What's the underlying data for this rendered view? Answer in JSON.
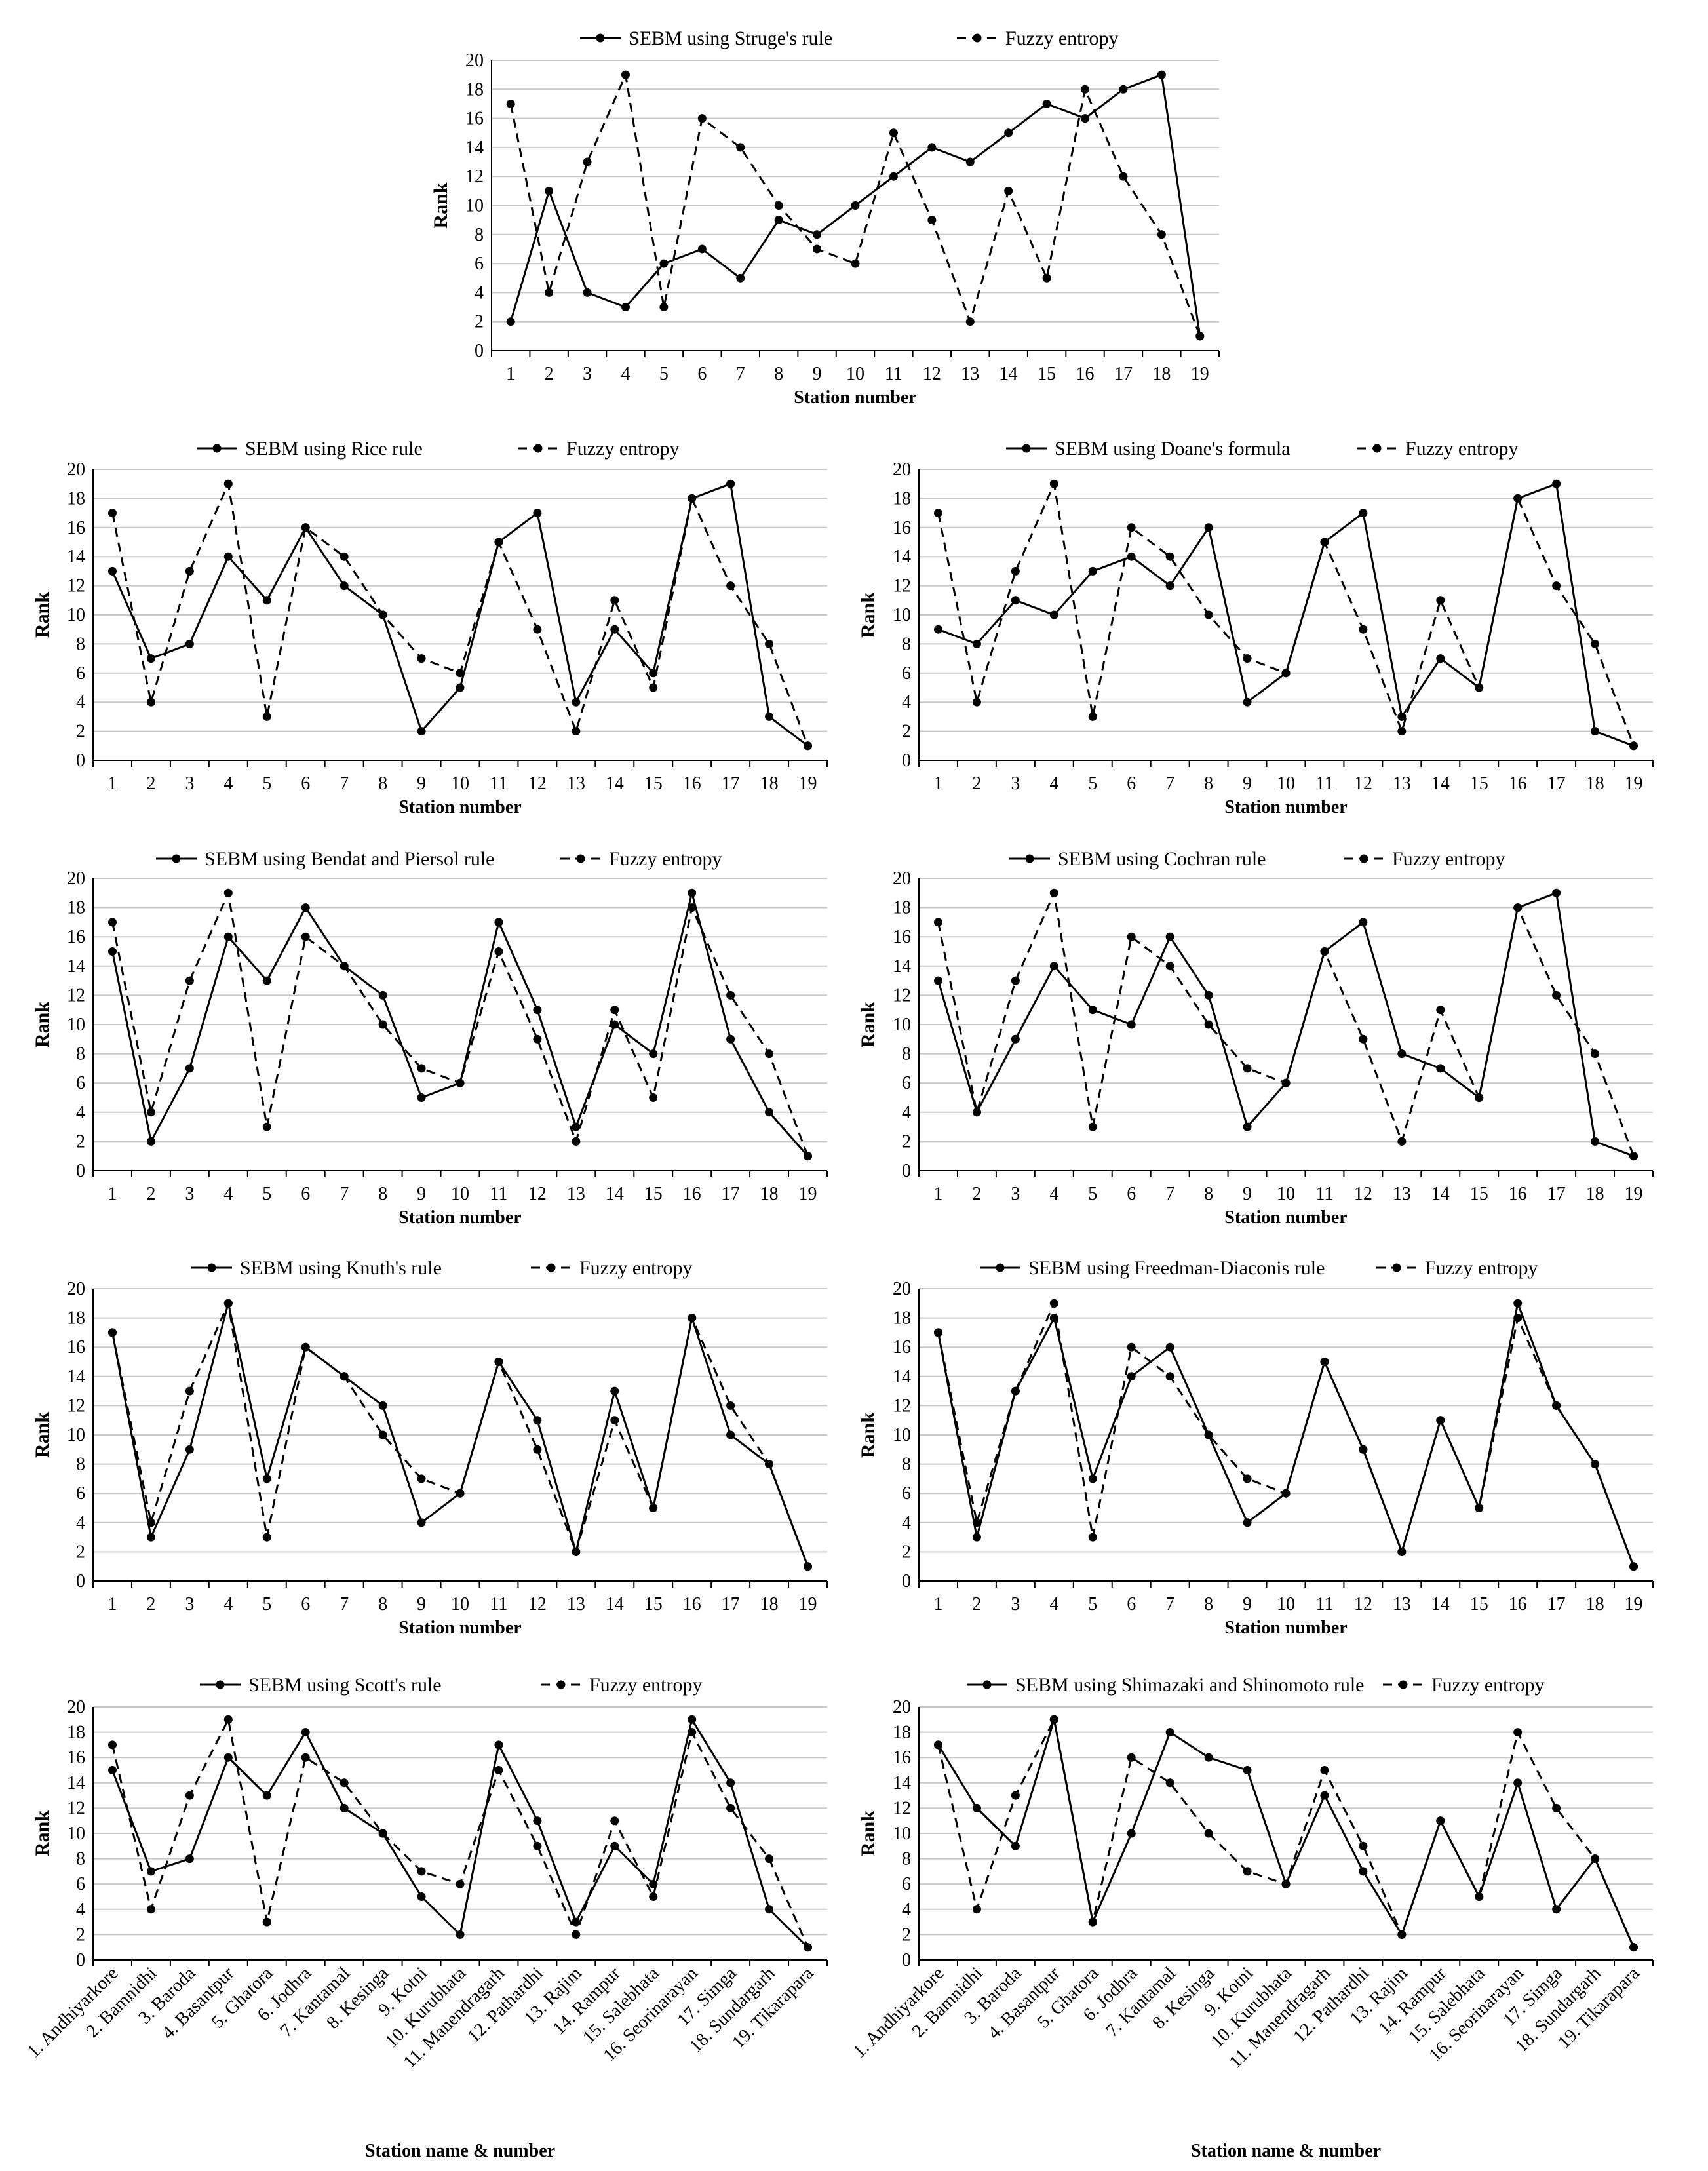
{
  "chart_data": [
    {
      "type": "line",
      "xlabel": "Station number",
      "ylabel": "Rank",
      "ylim": [
        0,
        20
      ],
      "yticks": [
        "0",
        "2",
        "4",
        "6",
        "8",
        "10",
        "12",
        "14",
        "16",
        "18",
        "20"
      ],
      "x": [
        "1",
        "2",
        "3",
        "4",
        "5",
        "6",
        "7",
        "8",
        "9",
        "10",
        "11",
        "12",
        "13",
        "14",
        "15",
        "16",
        "17",
        "18",
        "19"
      ],
      "grid": "horizontal",
      "legend": "top",
      "series": [
        {
          "name": "SEBM using Struge's rule",
          "style": "solid",
          "values": [
            2,
            11,
            4,
            3,
            6,
            7,
            5,
            9,
            8,
            10,
            12,
            14,
            13,
            15,
            17,
            16,
            18,
            19,
            1
          ]
        },
        {
          "name": "Fuzzy entropy",
          "style": "dashed",
          "values": [
            17,
            4,
            13,
            19,
            3,
            16,
            14,
            10,
            7,
            6,
            15,
            9,
            2,
            11,
            5,
            18,
            12,
            8,
            1
          ]
        }
      ]
    },
    {
      "type": "line",
      "xlabel": "Station number",
      "ylabel": "Rank",
      "ylim": [
        0,
        20
      ],
      "yticks": [
        "0",
        "2",
        "4",
        "6",
        "8",
        "10",
        "12",
        "14",
        "16",
        "18",
        "20"
      ],
      "x": [
        "1",
        "2",
        "3",
        "4",
        "5",
        "6",
        "7",
        "8",
        "9",
        "10",
        "11",
        "12",
        "13",
        "14",
        "15",
        "16",
        "17",
        "18",
        "19"
      ],
      "grid": "horizontal",
      "legend": "top",
      "series": [
        {
          "name": "SEBM using Rice rule",
          "style": "solid",
          "values": [
            13,
            7,
            8,
            14,
            11,
            16,
            12,
            10,
            2,
            5,
            15,
            17,
            4,
            9,
            6,
            18,
            19,
            3,
            1
          ]
        },
        {
          "name": "Fuzzy entropy",
          "style": "dashed",
          "values": [
            17,
            4,
            13,
            19,
            3,
            16,
            14,
            10,
            7,
            6,
            15,
            9,
            2,
            11,
            5,
            18,
            12,
            8,
            1
          ]
        }
      ]
    },
    {
      "type": "line",
      "xlabel": "Station number",
      "ylabel": "Rank",
      "ylim": [
        0,
        20
      ],
      "yticks": [
        "0",
        "2",
        "4",
        "6",
        "8",
        "10",
        "12",
        "14",
        "16",
        "18",
        "20"
      ],
      "x": [
        "1",
        "2",
        "3",
        "4",
        "5",
        "6",
        "7",
        "8",
        "9",
        "10",
        "11",
        "12",
        "13",
        "14",
        "15",
        "16",
        "17",
        "18",
        "19"
      ],
      "grid": "horizontal",
      "legend": "top",
      "series": [
        {
          "name": "SEBM using Doane's formula",
          "style": "solid",
          "values": [
            9,
            8,
            11,
            10,
            13,
            14,
            12,
            16,
            4,
            6,
            15,
            17,
            3,
            7,
            5,
            18,
            19,
            2,
            1
          ]
        },
        {
          "name": "Fuzzy entropy",
          "style": "dashed",
          "values": [
            17,
            4,
            13,
            19,
            3,
            16,
            14,
            10,
            7,
            6,
            15,
            9,
            2,
            11,
            5,
            18,
            12,
            8,
            1
          ]
        }
      ]
    },
    {
      "type": "line",
      "xlabel": "Station number",
      "ylabel": "Rank",
      "ylim": [
        0,
        20
      ],
      "yticks": [
        "0",
        "2",
        "4",
        "6",
        "8",
        "10",
        "12",
        "14",
        "16",
        "18",
        "20"
      ],
      "x": [
        "1",
        "2",
        "3",
        "4",
        "5",
        "6",
        "7",
        "8",
        "9",
        "10",
        "11",
        "12",
        "13",
        "14",
        "15",
        "16",
        "17",
        "18",
        "19"
      ],
      "grid": "horizontal",
      "legend": "top",
      "series": [
        {
          "name": "SEBM using Bendat and Piersol rule",
          "style": "solid",
          "values": [
            15,
            2,
            7,
            16,
            13,
            18,
            14,
            12,
            5,
            6,
            17,
            11,
            3,
            10,
            8,
            19,
            9,
            4,
            1
          ]
        },
        {
          "name": "Fuzzy entropy",
          "style": "dashed",
          "values": [
            17,
            4,
            13,
            19,
            3,
            16,
            14,
            10,
            7,
            6,
            15,
            9,
            2,
            11,
            5,
            18,
            12,
            8,
            1
          ]
        }
      ]
    },
    {
      "type": "line",
      "xlabel": "Station number",
      "ylabel": "Rank",
      "ylim": [
        0,
        20
      ],
      "yticks": [
        "0",
        "2",
        "4",
        "6",
        "8",
        "10",
        "12",
        "14",
        "16",
        "18",
        "20"
      ],
      "x": [
        "1",
        "2",
        "3",
        "4",
        "5",
        "6",
        "7",
        "8",
        "9",
        "10",
        "11",
        "12",
        "13",
        "14",
        "15",
        "16",
        "17",
        "18",
        "19"
      ],
      "grid": "horizontal",
      "legend": "top",
      "series": [
        {
          "name": "SEBM using Cochran rule",
          "style": "solid",
          "values": [
            13,
            4,
            9,
            14,
            11,
            10,
            16,
            12,
            3,
            6,
            15,
            17,
            8,
            7,
            5,
            18,
            19,
            2,
            1
          ]
        },
        {
          "name": "Fuzzy entropy",
          "style": "dashed",
          "values": [
            17,
            4,
            13,
            19,
            3,
            16,
            14,
            10,
            7,
            6,
            15,
            9,
            2,
            11,
            5,
            18,
            12,
            8,
            1
          ]
        }
      ]
    },
    {
      "type": "line",
      "xlabel": "Station number",
      "ylabel": "Rank",
      "ylim": [
        0,
        20
      ],
      "yticks": [
        "0",
        "2",
        "4",
        "6",
        "8",
        "10",
        "12",
        "14",
        "16",
        "18",
        "20"
      ],
      "x": [
        "1",
        "2",
        "3",
        "4",
        "5",
        "6",
        "7",
        "8",
        "9",
        "10",
        "11",
        "12",
        "13",
        "14",
        "15",
        "16",
        "17",
        "18",
        "19"
      ],
      "grid": "horizontal",
      "legend": "top",
      "series": [
        {
          "name": "SEBM using Knuth's rule",
          "style": "solid",
          "values": [
            17,
            3,
            9,
            19,
            7,
            16,
            14,
            12,
            4,
            6,
            15,
            11,
            2,
            13,
            5,
            18,
            10,
            8,
            1
          ]
        },
        {
          "name": "Fuzzy entropy",
          "style": "dashed",
          "values": [
            17,
            4,
            13,
            19,
            3,
            16,
            14,
            10,
            7,
            6,
            15,
            9,
            2,
            11,
            5,
            18,
            12,
            8,
            1
          ]
        }
      ]
    },
    {
      "type": "line",
      "xlabel": "Station number",
      "ylabel": "Rank",
      "ylim": [
        0,
        20
      ],
      "yticks": [
        "0",
        "2",
        "4",
        "6",
        "8",
        "10",
        "12",
        "14",
        "16",
        "18",
        "20"
      ],
      "x": [
        "1",
        "2",
        "3",
        "4",
        "5",
        "6",
        "7",
        "8",
        "9",
        "10",
        "11",
        "12",
        "13",
        "14",
        "15",
        "16",
        "17",
        "18",
        "19"
      ],
      "grid": "horizontal",
      "legend": "top",
      "series": [
        {
          "name": "SEBM using Freedman-Diaconis rule",
          "style": "solid",
          "values": [
            17,
            3,
            13,
            18,
            7,
            14,
            16,
            10,
            4,
            6,
            15,
            9,
            2,
            11,
            5,
            19,
            12,
            8,
            1
          ]
        },
        {
          "name": "Fuzzy entropy",
          "style": "dashed",
          "values": [
            17,
            4,
            13,
            19,
            3,
            16,
            14,
            10,
            7,
            6,
            15,
            9,
            2,
            11,
            5,
            18,
            12,
            8,
            1
          ]
        }
      ]
    },
    {
      "type": "line",
      "xlabel": "Station name & number",
      "ylabel": "Rank",
      "ylim": [
        0,
        20
      ],
      "yticks": [
        "0",
        "2",
        "4",
        "6",
        "8",
        "10",
        "12",
        "14",
        "16",
        "18",
        "20"
      ],
      "x": [
        "1. Andhiyarkore",
        "2. Bamnidhi",
        "3. Baroda",
        "4. Basantpur",
        "5. Ghatora",
        "6. Jodhra",
        "7. Kantamal",
        "8. Kesinga",
        "9. Kotni",
        "10. Kurubhata",
        "11. Manendragarh",
        "12. Pathardhi",
        "13. Rajim",
        "14. Rampur",
        "15. Salebhata",
        "16. Seorinarayan",
        "17. Simga",
        "18. Sundargarh",
        "19. Tikarapara"
      ],
      "grid": "horizontal",
      "legend": "top",
      "series": [
        {
          "name": "SEBM using Scott's rule",
          "style": "solid",
          "values": [
            15,
            7,
            8,
            16,
            13,
            18,
            12,
            10,
            5,
            2,
            17,
            11,
            3,
            9,
            6,
            19,
            14,
            4,
            1
          ]
        },
        {
          "name": "Fuzzy entropy",
          "style": "dashed",
          "values": [
            17,
            4,
            13,
            19,
            3,
            16,
            14,
            10,
            7,
            6,
            15,
            9,
            2,
            11,
            5,
            18,
            12,
            8,
            1
          ]
        }
      ]
    },
    {
      "type": "line",
      "xlabel": "Station name & number",
      "ylabel": "Rank",
      "ylim": [
        0,
        20
      ],
      "yticks": [
        "0",
        "2",
        "4",
        "6",
        "8",
        "10",
        "12",
        "14",
        "16",
        "18",
        "20"
      ],
      "x": [
        "1. Andhiyarkore",
        "2. Bamnidhi",
        "3. Baroda",
        "4. Basantpur",
        "5. Ghatora",
        "6. Jodhra",
        "7. Kantamal",
        "8. Kesinga",
        "9. Kotni",
        "10. Kurubhata",
        "11. Manendragarh",
        "12. Pathardhi",
        "13. Rajim",
        "14. Rampur",
        "15. Salebhata",
        "16. Seorinarayan",
        "17. Simga",
        "18. Sundargarh",
        "19. Tikarapara"
      ],
      "grid": "horizontal",
      "legend": "top",
      "series": [
        {
          "name": "SEBM using Shimazaki and Shinomoto rule",
          "style": "solid",
          "values": [
            17,
            12,
            9,
            19,
            3,
            10,
            18,
            16,
            15,
            6,
            13,
            7,
            2,
            11,
            5,
            14,
            4,
            8,
            1
          ]
        },
        {
          "name": "Fuzzy entropy",
          "style": "dashed",
          "values": [
            17,
            4,
            13,
            19,
            3,
            16,
            14,
            10,
            7,
            6,
            15,
            9,
            2,
            11,
            5,
            18,
            12,
            8,
            1
          ]
        }
      ]
    }
  ]
}
